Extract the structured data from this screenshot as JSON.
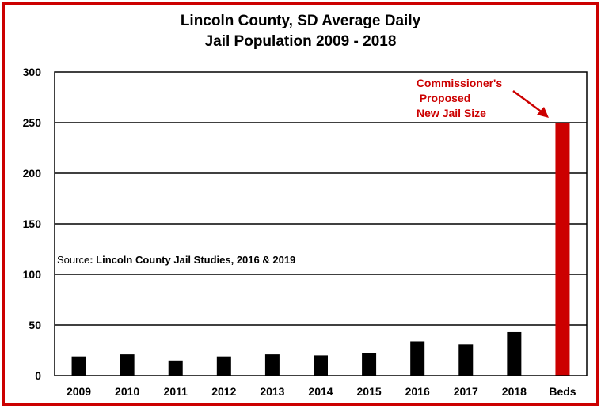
{
  "chart_data": {
    "type": "bar",
    "title_line1": "Lincoln County, SD Average Daily",
    "title_line2": "Jail Population 2009 - 2018",
    "categories": [
      "2009",
      "2010",
      "2011",
      "2012",
      "2013",
      "2014",
      "2015",
      "2016",
      "2017",
      "2018",
      "Beds"
    ],
    "values": [
      19,
      21,
      15,
      19,
      21,
      20,
      22,
      34,
      31,
      43,
      250
    ],
    "bar_colors": [
      "#000000",
      "#000000",
      "#000000",
      "#000000",
      "#000000",
      "#000000",
      "#000000",
      "#000000",
      "#000000",
      "#000000",
      "#cc0000"
    ],
    "ylim": [
      0,
      300
    ],
    "yticks": [
      0,
      50,
      100,
      150,
      200,
      250,
      300
    ],
    "grid": true,
    "source_prefix": "Source",
    "source_text": ": Lincoln County Jail Studies, 2016 & 2019",
    "annotation": [
      "Commissioner's",
      "Proposed",
      "New Jail Size"
    ],
    "xlabel": "",
    "ylabel": ""
  },
  "colors": {
    "border": "#cc0000",
    "highlight": "#cc0000",
    "bar": "#000000"
  }
}
